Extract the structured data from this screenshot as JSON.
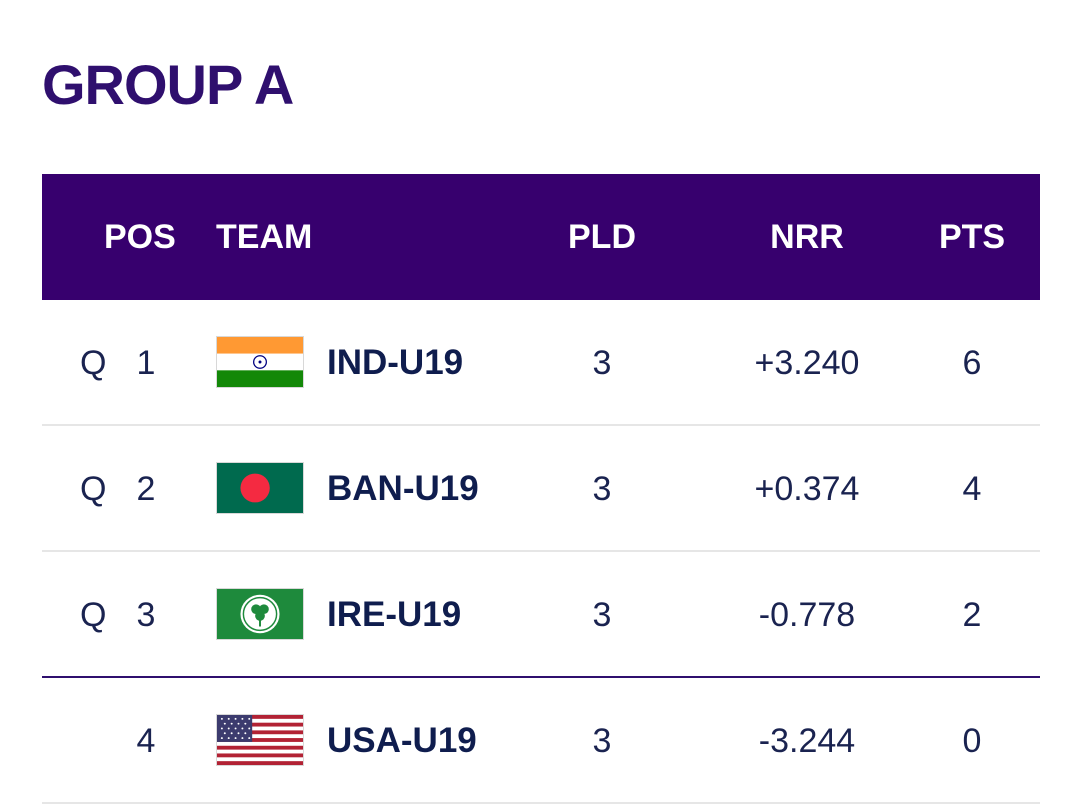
{
  "title": "GROUP A",
  "headers": {
    "pos": "POS",
    "team": "TEAM",
    "pld": "PLD",
    "nrr": "NRR",
    "pts": "PTS"
  },
  "rows": [
    {
      "qualifier": "Q",
      "pos": "1",
      "team": "IND-U19",
      "flag": "india-flag-icon",
      "pld": "3",
      "nrr": "+3.240",
      "pts": "6"
    },
    {
      "qualifier": "Q",
      "pos": "2",
      "team": "BAN-U19",
      "flag": "bangladesh-flag-icon",
      "pld": "3",
      "nrr": "+0.374",
      "pts": "4"
    },
    {
      "qualifier": "Q",
      "pos": "3",
      "team": "IRE-U19",
      "flag": "ireland-cricket-flag-icon",
      "pld": "3",
      "nrr": "-0.778",
      "pts": "2"
    },
    {
      "qualifier": "",
      "pos": "4",
      "team": "USA-U19",
      "flag": "usa-flag-icon",
      "pld": "3",
      "nrr": "-3.244",
      "pts": "0"
    }
  ],
  "colors": {
    "header_bg": "#37006e",
    "title": "#2f0f6e",
    "text": "#1a2350",
    "cutoff_line": "#2f0f6e"
  }
}
